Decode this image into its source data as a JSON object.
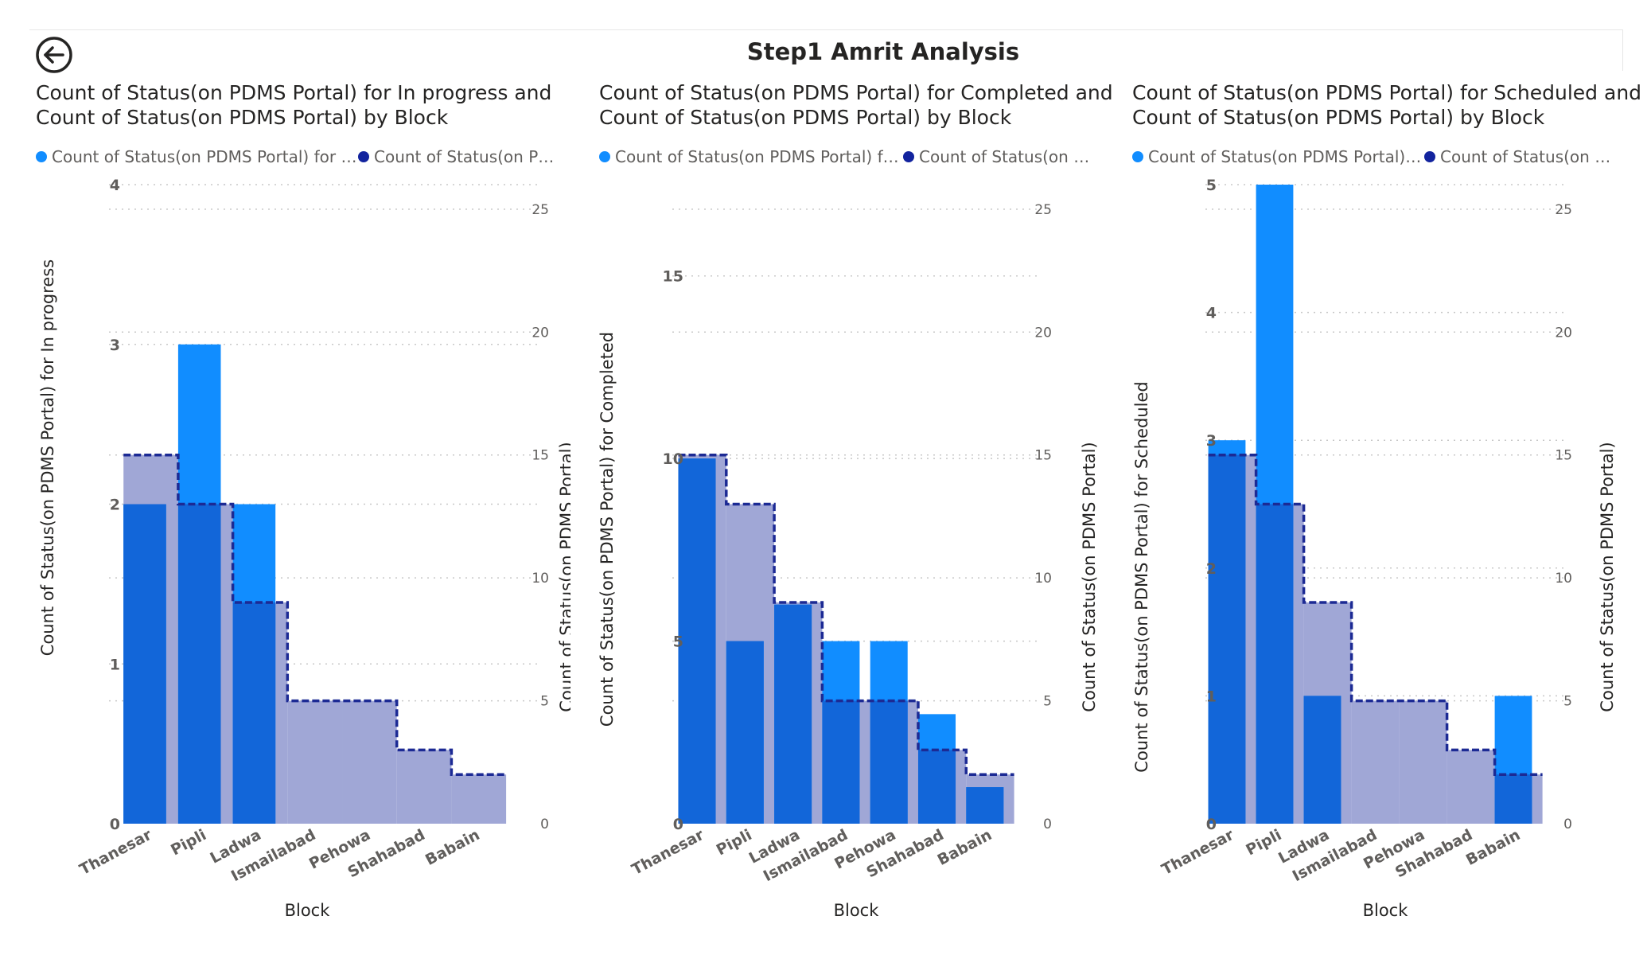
{
  "page": {
    "title": "Step1 Amrit Analysis"
  },
  "colors": {
    "status_bar": "#118dff",
    "total_area": "#a0a7d6",
    "total_line": "#1c2a94",
    "overlap": "#1266d9",
    "grid": "#c8c8c8",
    "legend_status": "#118dff",
    "legend_total": "#12239e"
  },
  "icons": {
    "back": "back-arrow-icon"
  },
  "charts": [
    {
      "title_line1": "Count of Status(on PDMS Portal) for In progress and",
      "title_line2": "Count of Status(on PDMS Portal) by Block",
      "legend": [
        "Count of Status(on PDMS Portal) for In ...",
        "Count of Status(on PD..."
      ],
      "ylabel": "Count of Status(on PDMS Portal) for In progress",
      "y2label": "Count of Status(on PDMS Portal)",
      "xlabel": "Block"
    },
    {
      "title_line1": "Count of Status(on PDMS Portal) for Completed and",
      "title_line2": "Count of Status(on PDMS Portal) by Block",
      "legend": [
        "Count of Status(on PDMS Portal) for ...",
        "Count of Status(on P..."
      ],
      "ylabel": "Count of Status(on PDMS Portal) for Completed",
      "y2label": "Count of Status(on PDMS Portal)",
      "xlabel": "Block"
    },
    {
      "title_line1": "Count of Status(on PDMS Portal) for Scheduled and",
      "title_line2": "Count of Status(on PDMS Portal) by Block",
      "legend": [
        "Count of Status(on PDMS Portal) fo...",
        "Count of Status(on P..."
      ],
      "ylabel": "Count of Status(on PDMS Portal) for Scheduled",
      "y2label": "Count of Status(on PDMS Portal)",
      "xlabel": "Block"
    }
  ],
  "chart_data": [
    {
      "type": "bar",
      "categories": [
        "Thanesar",
        "Pipli",
        "Ladwa",
        "Ismailabad",
        "Pehowa",
        "Shahabad",
        "Babain"
      ],
      "series": [
        {
          "name": "Count of Status(on PDMS Portal) for In progress",
          "axis": "left",
          "values": [
            2,
            3,
            2,
            0,
            0,
            0,
            0
          ]
        },
        {
          "name": "Count of Status(on PDMS Portal)",
          "axis": "right",
          "values": [
            15,
            13,
            9,
            5,
            5,
            3,
            2
          ]
        }
      ],
      "ylim": [
        0,
        4
      ],
      "yticks": [
        0,
        1,
        2,
        3,
        4
      ],
      "y2lim": [
        0,
        26
      ],
      "y2ticks": [
        0,
        5,
        10,
        15,
        20,
        25
      ],
      "grid": true,
      "legend_position": "top-left"
    },
    {
      "type": "bar",
      "categories": [
        "Thanesar",
        "Pipli",
        "Ladwa",
        "Ismailabad",
        "Pehowa",
        "Shahabad",
        "Babain"
      ],
      "series": [
        {
          "name": "Count of Status(on PDMS Portal) for Completed",
          "axis": "left",
          "values": [
            10,
            5,
            6,
            5,
            5,
            3,
            1
          ]
        },
        {
          "name": "Count of Status(on PDMS Portal)",
          "axis": "right",
          "values": [
            15,
            13,
            9,
            5,
            5,
            3,
            2
          ]
        }
      ],
      "ylim": [
        0,
        17.5
      ],
      "yticks": [
        0,
        5,
        10,
        15
      ],
      "y2lim": [
        0,
        26
      ],
      "y2ticks": [
        0,
        5,
        10,
        15,
        20,
        25
      ],
      "grid": true,
      "legend_position": "top-left"
    },
    {
      "type": "bar",
      "categories": [
        "Thanesar",
        "Pipli",
        "Ladwa",
        "Ismailabad",
        "Pehowa",
        "Shahabad",
        "Babain"
      ],
      "series": [
        {
          "name": "Count of Status(on PDMS Portal) for Scheduled",
          "axis": "left",
          "values": [
            3,
            5,
            1,
            0,
            0,
            0,
            1
          ]
        },
        {
          "name": "Count of Status(on PDMS Portal)",
          "axis": "right",
          "values": [
            15,
            13,
            9,
            5,
            5,
            3,
            2
          ]
        }
      ],
      "ylim": [
        0,
        5
      ],
      "yticks": [
        0,
        1,
        2,
        3,
        4,
        5
      ],
      "y2lim": [
        0,
        26
      ],
      "y2ticks": [
        0,
        5,
        10,
        15,
        20,
        25
      ],
      "grid": true,
      "legend_position": "top-left"
    }
  ]
}
